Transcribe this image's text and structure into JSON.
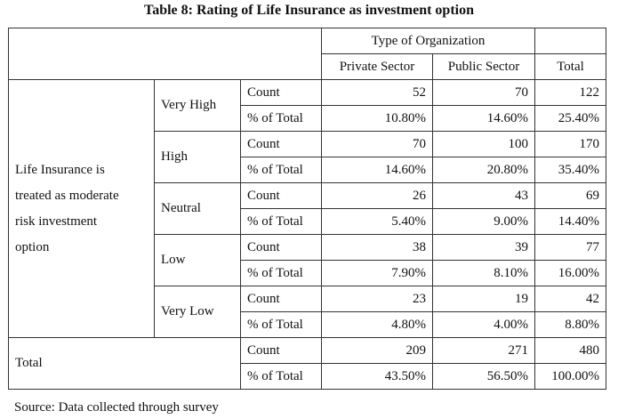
{
  "title": "Table 8: Rating of Life Insurance as investment option",
  "header": {
    "group": "Type of Organization",
    "columns": [
      "Private Sector",
      "Public Sector",
      "Total"
    ]
  },
  "row_group_label": [
    "Life Insurance is",
    "treated as moderate",
    "risk investment",
    "option"
  ],
  "ratings": [
    {
      "label": "Very High",
      "count": [
        "52",
        "70",
        "122"
      ],
      "pct": [
        "10.80%",
        "14.60%",
        "25.40%"
      ]
    },
    {
      "label": "High",
      "count": [
        "70",
        "100",
        "170"
      ],
      "pct": [
        "14.60%",
        "20.80%",
        "35.40%"
      ]
    },
    {
      "label": "Neutral",
      "count": [
        "26",
        "43",
        "69"
      ],
      "pct": [
        "5.40%",
        "9.00%",
        "14.40%"
      ]
    },
    {
      "label": "Low",
      "count": [
        "38",
        "39",
        "77"
      ],
      "pct": [
        "7.90%",
        "8.10%",
        "16.00%"
      ]
    },
    {
      "label": "Very Low",
      "count": [
        "23",
        "19",
        "42"
      ],
      "pct": [
        "4.80%",
        "4.00%",
        "8.80%"
      ]
    }
  ],
  "total": {
    "label": "Total",
    "count": [
      "209",
      "271",
      "480"
    ],
    "pct": [
      "43.50%",
      "56.50%",
      "100.00%"
    ]
  },
  "measure_labels": {
    "count": "Count",
    "pct": "% of Total"
  },
  "source": "Source: Data collected through survey"
}
